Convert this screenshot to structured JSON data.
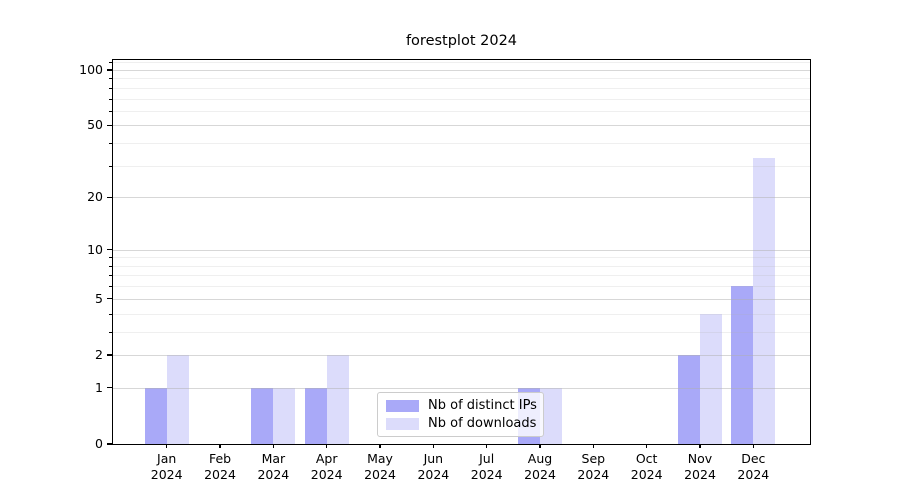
{
  "chart_data": {
    "type": "bar",
    "title": "forestplot 2024",
    "categories": [
      "Jan",
      "Feb",
      "Mar",
      "Apr",
      "May",
      "Jun",
      "Jul",
      "Aug",
      "Sep",
      "Oct",
      "Nov",
      "Dec"
    ],
    "x_tick_year": "2024",
    "series": [
      {
        "name": "Nb of distinct IPs",
        "color": "#a9a9f8",
        "values": [
          1,
          0,
          1,
          1,
          0,
          0,
          0,
          1,
          0,
          0,
          2,
          6
        ]
      },
      {
        "name": "Nb of downloads",
        "color": "#dcdcfb",
        "values": [
          2,
          0,
          1,
          2,
          0,
          0,
          0,
          1,
          0,
          0,
          4,
          33
        ]
      }
    ],
    "xlabel": "",
    "ylabel": "",
    "yscale": "log1p",
    "ylim": [
      0,
      113
    ],
    "y_major_ticks": [
      0,
      1,
      2,
      5,
      10,
      20,
      50,
      100
    ],
    "y_minor_ticks": [
      3,
      4,
      6,
      7,
      8,
      9,
      30,
      40,
      60,
      70,
      80,
      90,
      110
    ],
    "grid": "major and minor horizontal gridlines, drawn over bars",
    "legend_position": "lower center"
  },
  "colors": {
    "major_grid": "rgba(176,176,176,0.5)",
    "minor_grid": "rgba(176,176,176,0.2)",
    "spine": "#000000",
    "background": "#ffffff"
  }
}
